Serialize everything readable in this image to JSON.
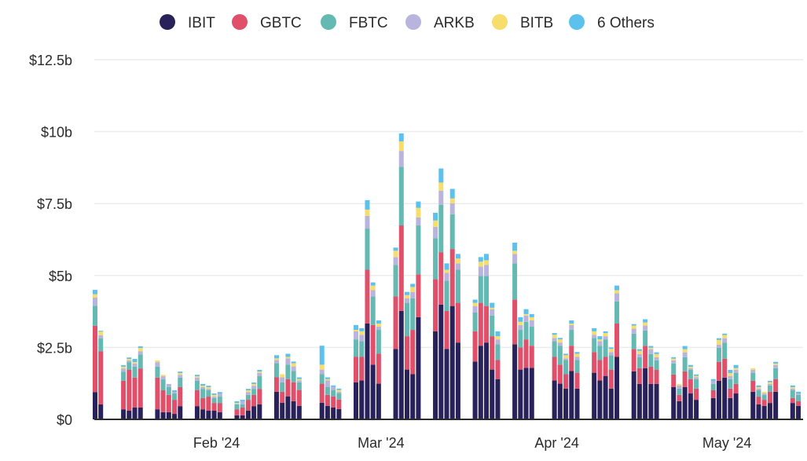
{
  "chart_data": {
    "type": "bar",
    "stacked": true,
    "title": "",
    "xlabel": "",
    "ylabel": "",
    "ylim": [
      0,
      12.5
    ],
    "y_unit": "billion USD",
    "grid": true,
    "legend_position": "top-center",
    "yticks": [
      {
        "value": 0,
        "label": "$0"
      },
      {
        "value": 2.5,
        "label": "$2.5b"
      },
      {
        "value": 5,
        "label": "$5b"
      },
      {
        "value": 7.5,
        "label": "$7.5b"
      },
      {
        "value": 10,
        "label": "$10b"
      },
      {
        "value": 12.5,
        "label": "$12.5b"
      }
    ],
    "xticks": [
      {
        "date": "2024-02-01",
        "label": "Feb '24"
      },
      {
        "date": "2024-03-01",
        "label": "Mar '24"
      },
      {
        "date": "2024-04-01",
        "label": "Apr '24"
      },
      {
        "date": "2024-05-01",
        "label": "May '24"
      }
    ],
    "x_start": "2024-01-11",
    "x_end": "2024-05-14",
    "series": [
      {
        "name": "IBIT",
        "color": "#29215a"
      },
      {
        "name": "GBTC",
        "color": "#e0506a"
      },
      {
        "name": "FBTC",
        "color": "#64bab2"
      },
      {
        "name": "ARKB",
        "color": "#b9b4de"
      },
      {
        "name": "BITB",
        "color": "#f7dd6b"
      },
      {
        "name": "6 Others",
        "color": "#5cc1ec"
      }
    ],
    "stacks": [
      {
        "date": "2024-01-11",
        "values": [
          0.95,
          2.3,
          0.7,
          0.28,
          0.12,
          0.15
        ]
      },
      {
        "date": "2024-01-12",
        "values": [
          0.52,
          1.85,
          0.44,
          0.11,
          0.13,
          0.03
        ]
      },
      {
        "date": "2024-01-16",
        "values": [
          0.35,
          0.99,
          0.32,
          0.11,
          0.06,
          0.05
        ]
      },
      {
        "date": "2024-01-17",
        "values": [
          0.3,
          1.42,
          0.27,
          0.06,
          0.05,
          0.05
        ]
      },
      {
        "date": "2024-01-18",
        "values": [
          0.41,
          1.04,
          0.38,
          0.11,
          0.05,
          0.11
        ]
      },
      {
        "date": "2024-01-19",
        "values": [
          0.41,
          1.36,
          0.49,
          0.11,
          0.11,
          0.06
        ]
      },
      {
        "date": "2024-01-22",
        "values": [
          0.35,
          1.1,
          0.38,
          0.16,
          0.06,
          0
        ]
      },
      {
        "date": "2024-01-23",
        "values": [
          0.25,
          0.76,
          0.38,
          0.11,
          0.05,
          0
        ]
      },
      {
        "date": "2024-01-24",
        "values": [
          0.25,
          0.6,
          0.27,
          0.11,
          0,
          0
        ]
      },
      {
        "date": "2024-01-25",
        "values": [
          0.19,
          0.49,
          0.22,
          0.05,
          0,
          0.06
        ]
      },
      {
        "date": "2024-01-26",
        "values": [
          0.46,
          0.66,
          0.33,
          0.1,
          0.06,
          0.05
        ]
      },
      {
        "date": "2024-01-29",
        "values": [
          0.46,
          0.55,
          0.33,
          0.11,
          0.05,
          0.05
        ]
      },
      {
        "date": "2024-01-30",
        "values": [
          0.35,
          0.39,
          0.32,
          0.06,
          0.05,
          0.06
        ]
      },
      {
        "date": "2024-01-31",
        "values": [
          0.3,
          0.49,
          0.22,
          0.05,
          0.06,
          0.05
        ]
      },
      {
        "date": "2024-02-01",
        "values": [
          0.3,
          0.27,
          0.17,
          0.05,
          0.06,
          0.05
        ]
      },
      {
        "date": "2024-02-02",
        "values": [
          0.25,
          0.32,
          0.22,
          0.11,
          0,
          0.05
        ]
      },
      {
        "date": "2024-02-05",
        "values": [
          0.14,
          0.21,
          0.17,
          0.02,
          0.03,
          0.06
        ]
      },
      {
        "date": "2024-02-06",
        "values": [
          0.14,
          0.27,
          0.11,
          0.11,
          0,
          0.05
        ]
      },
      {
        "date": "2024-02-07",
        "values": [
          0.3,
          0.38,
          0.17,
          0.1,
          0.06,
          0.05
        ]
      },
      {
        "date": "2024-02-08",
        "values": [
          0.46,
          0.39,
          0.21,
          0.11,
          0.06,
          0.05
        ]
      },
      {
        "date": "2024-02-09",
        "values": [
          0.52,
          0.54,
          0.44,
          0.11,
          0.05,
          0.06
        ]
      },
      {
        "date": "2024-02-12",
        "values": [
          0.96,
          0.5,
          0.49,
          0.11,
          0.06,
          0.11
        ]
      },
      {
        "date": "2024-02-13",
        "values": [
          0.58,
          0.38,
          0.33,
          0.17,
          0.11,
          0
        ]
      },
      {
        "date": "2024-02-14",
        "values": [
          0.8,
          0.6,
          0.5,
          0.22,
          0.05,
          0.11
        ]
      },
      {
        "date": "2024-02-15",
        "values": [
          0.63,
          0.66,
          0.39,
          0.16,
          0.11,
          0.06
        ]
      },
      {
        "date": "2024-02-16",
        "values": [
          0.47,
          0.55,
          0.27,
          0.06,
          0.05,
          0.06
        ]
      },
      {
        "date": "2024-02-20",
        "values": [
          0.58,
          0.66,
          0.33,
          0.16,
          0.17,
          0.66
        ]
      },
      {
        "date": "2024-02-21",
        "values": [
          0.47,
          0.38,
          0.28,
          0.22,
          0.05,
          0.06
        ]
      },
      {
        "date": "2024-02-22",
        "values": [
          0.41,
          0.39,
          0.22,
          0.11,
          0,
          0.05
        ]
      },
      {
        "date": "2024-02-23",
        "values": [
          0.36,
          0.33,
          0.22,
          0.05,
          0.06,
          0.05
        ]
      },
      {
        "date": "2024-02-26",
        "values": [
          1.29,
          0.88,
          0.61,
          0.28,
          0.05,
          0.17
        ]
      },
      {
        "date": "2024-02-27",
        "values": [
          1.35,
          0.82,
          0.55,
          0.22,
          0.12,
          0.11
        ]
      },
      {
        "date": "2024-02-28",
        "values": [
          3.33,
          1.87,
          1.43,
          0.44,
          0.22,
          0.33
        ]
      },
      {
        "date": "2024-02-29",
        "values": [
          1.9,
          1.38,
          0.99,
          0.22,
          0.16,
          0.11
        ]
      },
      {
        "date": "2024-03-01",
        "values": [
          1.24,
          1.04,
          0.83,
          0.11,
          0.11,
          0.11
        ]
      },
      {
        "date": "2024-03-04",
        "values": [
          2.45,
          1.82,
          1.1,
          0.27,
          0.22,
          0.11
        ]
      },
      {
        "date": "2024-03-05",
        "values": [
          3.77,
          2.97,
          2.04,
          0.55,
          0.33,
          0.28
        ]
      },
      {
        "date": "2024-03-06",
        "values": [
          1.73,
          1.16,
          1.16,
          0.16,
          0.11,
          0.11
        ]
      },
      {
        "date": "2024-03-07",
        "values": [
          1.57,
          1.54,
          1.1,
          0.22,
          0.17,
          0.11
        ]
      },
      {
        "date": "2024-03-08",
        "values": [
          3.55,
          1.49,
          1.7,
          0.28,
          0.33,
          0.22
        ]
      },
      {
        "date": "2024-03-11",
        "values": [
          3.06,
          1.81,
          1.43,
          0.39,
          0.22,
          0.27
        ]
      },
      {
        "date": "2024-03-12",
        "values": [
          3.99,
          1.82,
          1.65,
          0.49,
          0.28,
          0.49
        ]
      },
      {
        "date": "2024-03-13",
        "values": [
          2.45,
          1.32,
          1.05,
          0.27,
          0.11,
          0.22
        ]
      },
      {
        "date": "2024-03-14",
        "values": [
          3.94,
          1.98,
          1.21,
          0.38,
          0.17,
          0.33
        ]
      },
      {
        "date": "2024-03-15",
        "values": [
          2.67,
          1.38,
          1.15,
          0.22,
          0.17,
          0.16
        ]
      },
      {
        "date": "2024-03-18",
        "values": [
          2.01,
          1.05,
          0.66,
          0.22,
          0.11,
          0.11
        ]
      },
      {
        "date": "2024-03-19",
        "values": [
          2.56,
          1.49,
          0.93,
          0.33,
          0.17,
          0.16
        ]
      },
      {
        "date": "2024-03-20",
        "values": [
          2.67,
          1.27,
          1.04,
          0.39,
          0.16,
          0.22
        ]
      },
      {
        "date": "2024-03-21",
        "values": [
          1.73,
          1.16,
          0.72,
          0.22,
          0.05,
          0.17
        ]
      },
      {
        "date": "2024-03-22",
        "values": [
          1.4,
          0.66,
          0.55,
          0.17,
          0.11,
          0.17
        ]
      },
      {
        "date": "2024-03-25",
        "values": [
          2.61,
          1.55,
          1.26,
          0.33,
          0.11,
          0.28
        ]
      },
      {
        "date": "2024-03-26",
        "values": [
          1.73,
          0.77,
          0.61,
          0.17,
          0.11,
          0.16
        ]
      },
      {
        "date": "2024-03-27",
        "values": [
          1.79,
          0.99,
          0.61,
          0.22,
          0.05,
          0.17
        ]
      },
      {
        "date": "2024-03-28",
        "values": [
          1.79,
          0.77,
          0.66,
          0.22,
          0.11,
          0.11
        ]
      },
      {
        "date": "2024-04-01",
        "values": [
          1.35,
          0.82,
          0.55,
          0.11,
          0.11,
          0.06
        ]
      },
      {
        "date": "2024-04-02",
        "values": [
          1.24,
          0.66,
          0.66,
          0.11,
          0.11,
          0.05
        ]
      },
      {
        "date": "2024-04-03",
        "values": [
          1.07,
          0.5,
          0.49,
          0.06,
          0.11,
          0.05
        ]
      },
      {
        "date": "2024-04-04",
        "values": [
          1.68,
          0.88,
          0.55,
          0.17,
          0.05,
          0.11
        ]
      },
      {
        "date": "2024-04-05",
        "values": [
          1.07,
          0.55,
          0.44,
          0.11,
          0.11,
          0.06
        ]
      },
      {
        "date": "2024-04-08",
        "values": [
          1.62,
          0.72,
          0.49,
          0.11,
          0.12,
          0.11
        ]
      },
      {
        "date": "2024-04-09",
        "values": [
          1.35,
          0.71,
          0.5,
          0.16,
          0.06,
          0.11
        ]
      },
      {
        "date": "2024-04-10",
        "values": [
          1.51,
          0.66,
          0.61,
          0.11,
          0.11,
          0.06
        ]
      },
      {
        "date": "2024-04-11",
        "values": [
          1.07,
          0.66,
          0.5,
          0.11,
          0.11,
          0.05
        ]
      },
      {
        "date": "2024-04-12",
        "values": [
          2.17,
          1.16,
          0.77,
          0.28,
          0.11,
          0.16
        ]
      },
      {
        "date": "2024-04-15",
        "values": [
          1.67,
          0.77,
          0.54,
          0.17,
          0.11,
          0.05
        ]
      },
      {
        "date": "2024-04-16",
        "values": [
          1.23,
          0.55,
          0.38,
          0.11,
          0.11,
          0.06
        ]
      },
      {
        "date": "2024-04-17",
        "values": [
          1.78,
          0.77,
          0.54,
          0.17,
          0.11,
          0.11
        ]
      },
      {
        "date": "2024-04-18",
        "values": [
          1.23,
          0.6,
          0.44,
          0.17,
          0.05,
          0.06
        ]
      },
      {
        "date": "2024-04-19",
        "values": [
          1.23,
          0.49,
          0.33,
          0.11,
          0.11,
          0.06
        ]
      },
      {
        "date": "2024-04-22",
        "values": [
          1.12,
          0.44,
          0.38,
          0.11,
          0.06,
          0.05
        ]
      },
      {
        "date": "2024-04-23",
        "values": [
          0.63,
          0.22,
          0.22,
          0.11,
          0.05,
          0
        ]
      },
      {
        "date": "2024-04-24",
        "values": [
          1.12,
          0.55,
          0.49,
          0.17,
          0.11,
          0.11
        ]
      },
      {
        "date": "2024-04-25",
        "values": [
          0.9,
          0.5,
          0.32,
          0.06,
          0.05,
          0.06
        ]
      },
      {
        "date": "2024-04-26",
        "values": [
          0.68,
          0.39,
          0.33,
          0.06,
          0.05,
          0.05
        ]
      },
      {
        "date": "2024-04-29",
        "values": [
          0.74,
          0.27,
          0.22,
          0.11,
          0,
          0.06
        ]
      },
      {
        "date": "2024-04-30",
        "values": [
          1.34,
          0.66,
          0.49,
          0.11,
          0.16,
          0.06
        ]
      },
      {
        "date": "2024-05-01",
        "values": [
          1.45,
          0.66,
          0.55,
          0.16,
          0.11,
          0.05
        ]
      },
      {
        "date": "2024-05-02",
        "values": [
          0.74,
          0.33,
          0.33,
          0.11,
          0.1,
          0.11
        ]
      },
      {
        "date": "2024-05-03",
        "values": [
          0.9,
          0.33,
          0.38,
          0.11,
          0.06,
          0.11
        ]
      },
      {
        "date": "2024-05-06",
        "values": [
          0.96,
          0.38,
          0.27,
          0.11,
          0.06,
          0
        ]
      },
      {
        "date": "2024-05-07",
        "values": [
          0.52,
          0.27,
          0.22,
          0.06,
          0.05,
          0.06
        ]
      },
      {
        "date": "2024-05-08",
        "values": [
          0.47,
          0.21,
          0.17,
          0.05,
          0.06,
          0
        ]
      },
      {
        "date": "2024-05-09",
        "values": [
          0.57,
          0.39,
          0.22,
          0.05,
          0.06,
          0.05
        ]
      },
      {
        "date": "2024-05-10",
        "values": [
          0.96,
          0.44,
          0.38,
          0.11,
          0.05,
          0.06
        ]
      },
      {
        "date": "2024-05-13",
        "values": [
          0.57,
          0.17,
          0.27,
          0.06,
          0.05,
          0.06
        ]
      },
      {
        "date": "2024-05-14",
        "values": [
          0.47,
          0.16,
          0.22,
          0.05,
          0,
          0.06
        ]
      }
    ]
  }
}
